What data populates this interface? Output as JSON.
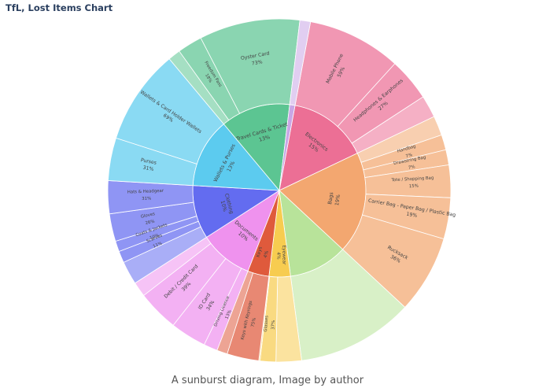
{
  "title": "TfL, Lost Items Chart",
  "caption": "A sunburst diagram, Image by author",
  "chart_data": {
    "type": "sunburst",
    "title": "TfL, Lost Items Chart",
    "categories": [
      {
        "name": "Electronics",
        "pct": "15%",
        "share": 15,
        "color": "#ec6f95",
        "children": [
          {
            "name": "Mobile Phone",
            "pct": "59%",
            "share": 59
          },
          {
            "name": "Headphones & Earphones",
            "pct": "27%",
            "share": 27
          },
          {
            "name": "",
            "pct": "",
            "share": 14
          }
        ]
      },
      {
        "name": "Bags",
        "pct": "19%",
        "share": 19,
        "color": "#f3a770",
        "children": [
          {
            "name": "",
            "pct": "",
            "share": 9
          },
          {
            "name": "Handbag",
            "pct": "7%",
            "share": 7
          },
          {
            "name": "Drawstring Bag",
            "pct": "7%",
            "share": 7
          },
          {
            "name": "Tote / Shopping Bag",
            "pct": "15%",
            "share": 15
          },
          {
            "name": "Carrier Bag - Paper Bag / Plastic Bag",
            "pct": "19%",
            "share": 19
          },
          {
            "name": "Rucksack",
            "pct": "36%",
            "share": 36
          }
        ]
      },
      {
        "name": "",
        "pct": "",
        "share": 11,
        "color": "#b8e39a",
        "children": []
      },
      {
        "name": "Eyewear",
        "pct": "4%",
        "share": 4,
        "color": "#f7cc50",
        "children": [
          {
            "name": "",
            "pct": "",
            "share": 60
          },
          {
            "name": "Glasses",
            "pct": "37%",
            "share": 37
          },
          {
            "name": "",
            "pct": "",
            "share": 3
          }
        ]
      },
      {
        "name": "Keys",
        "pct": "4%",
        "share": 4,
        "color": "#df5a3c",
        "children": [
          {
            "name": "Keys with Keyrings",
            "pct": "75%",
            "share": 75
          },
          {
            "name": "",
            "pct": "",
            "share": 25
          }
        ]
      },
      {
        "name": "Documents",
        "pct": "10%",
        "share": 10,
        "color": "#ef92ee",
        "children": [
          {
            "name": "Driving Licence",
            "pct": "13%",
            "share": 13
          },
          {
            "name": "ID Card",
            "pct": "34%",
            "share": 34
          },
          {
            "name": "Debit / Credit Card",
            "pct": "39%",
            "share": 39
          },
          {
            "name": "",
            "pct": "",
            "share": 14
          }
        ]
      },
      {
        "name": "Clothing",
        "pct": "10%",
        "share": 10,
        "color": "#636cf0",
        "children": [
          {
            "name": "",
            "pct": "",
            "share": 22
          },
          {
            "name": "Scarves",
            "pct": "11%",
            "share": 11
          },
          {
            "name": "Coats & Jackets",
            "pct": "10%",
            "share": 10
          },
          {
            "name": "Gloves",
            "pct": "26%",
            "share": 26
          },
          {
            "name": "Hats & Headgear",
            "pct": "31%",
            "share": 31
          }
        ]
      },
      {
        "name": "Wallets & Purses",
        "pct": "13%",
        "share": 13,
        "color": "#5ccbef",
        "children": [
          {
            "name": "Purses",
            "pct": "31%",
            "share": 31
          },
          {
            "name": "Wallets & Card Holder Wallets",
            "pct": "69%",
            "share": 69
          }
        ]
      },
      {
        "name": "Travel Cards & Ticket",
        "pct": "13%",
        "share": 13,
        "color": "#5cc592",
        "children": [
          {
            "name": "",
            "pct": "",
            "share": 9
          },
          {
            "name": "Freedom Pass",
            "pct": "18%",
            "share": 18
          },
          {
            "name": "Oyster Card",
            "pct": "73%",
            "share": 73
          }
        ]
      },
      {
        "name": "",
        "pct": "",
        "share": 1,
        "color": "#c9a6e6",
        "children": []
      }
    ]
  }
}
